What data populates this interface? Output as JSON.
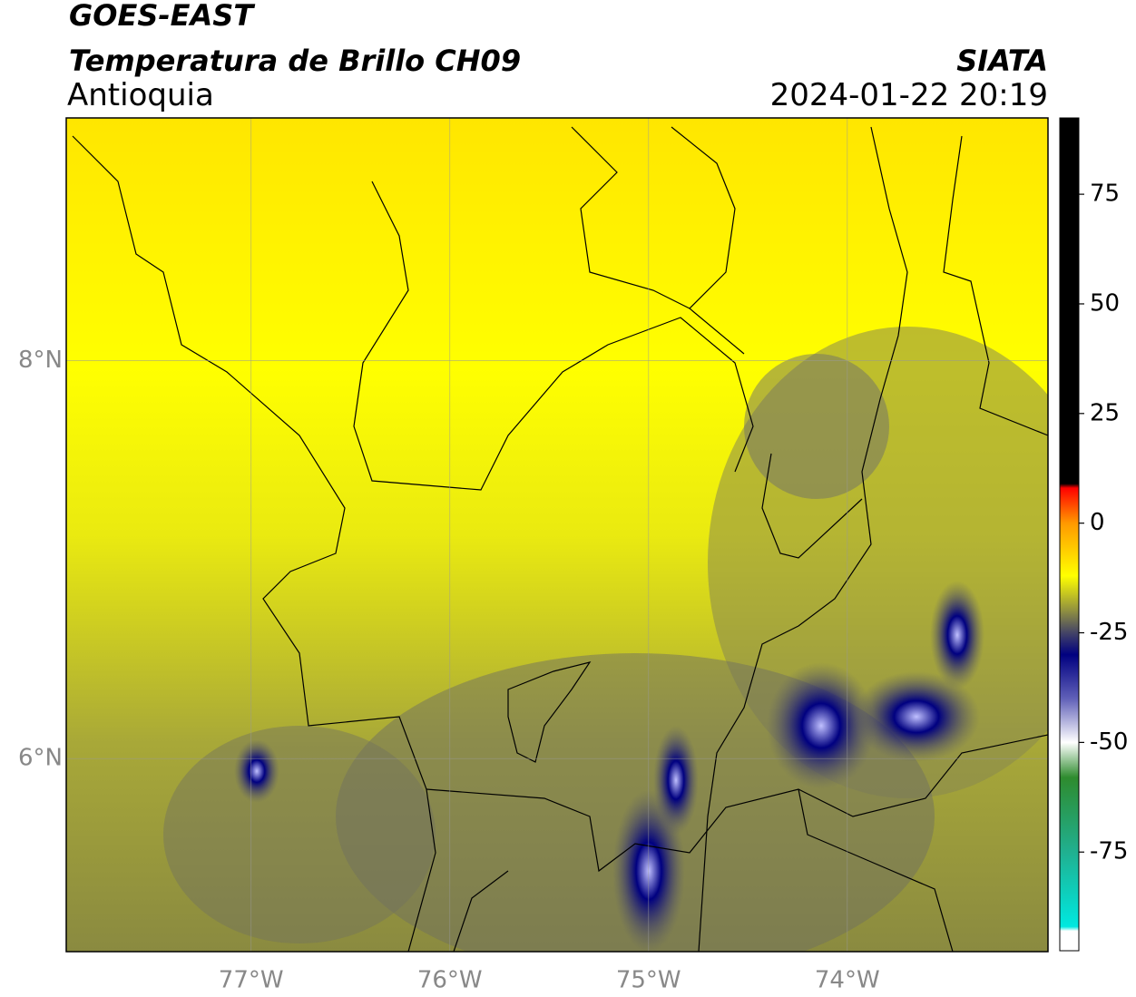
{
  "header": {
    "title": "GOES-EAST",
    "subtitle": "Temperatura de Brillo CH09",
    "region": "Antioquia",
    "source": "SIATA",
    "timestamp": "2024-01-22 20:19"
  },
  "map": {
    "lonlim": [
      -77.93,
      -72.99
    ],
    "latlim": [
      5.03,
      9.22
    ],
    "lon_ticks": [
      {
        "value": -77,
        "label": "77°W"
      },
      {
        "value": -76,
        "label": "76°W"
      },
      {
        "value": -75,
        "label": "75°W"
      },
      {
        "value": -74,
        "label": "74°W"
      }
    ],
    "lat_ticks": [
      {
        "value": 8,
        "label": "8°N"
      },
      {
        "value": 6,
        "label": "6°N"
      }
    ],
    "grid": true
  },
  "colorbar": {
    "lim": [
      -97.5,
      92.4
    ],
    "ticks": [
      75,
      50,
      25,
      0,
      -25,
      -50,
      -75
    ],
    "stops": [
      {
        "value": 92.4,
        "color": "#000000"
      },
      {
        "value": 9,
        "color": "#000000"
      },
      {
        "value": 8,
        "color": "#ff0000"
      },
      {
        "value": 0,
        "color": "#ff9900"
      },
      {
        "value": -12,
        "color": "#ffff00"
      },
      {
        "value": -20,
        "color": "#8f8f40"
      },
      {
        "value": -25,
        "color": "#444466"
      },
      {
        "value": -30,
        "color": "#000080"
      },
      {
        "value": -40,
        "color": "#6060b8"
      },
      {
        "value": -50,
        "color": "#ffffff"
      },
      {
        "value": -58,
        "color": "#2e8b2e"
      },
      {
        "value": -75,
        "color": "#20b090"
      },
      {
        "value": -92,
        "color": "#00e8e0"
      },
      {
        "value": -93,
        "color": "#ffffff"
      },
      {
        "value": -97.5,
        "color": "#ffffff"
      }
    ]
  }
}
